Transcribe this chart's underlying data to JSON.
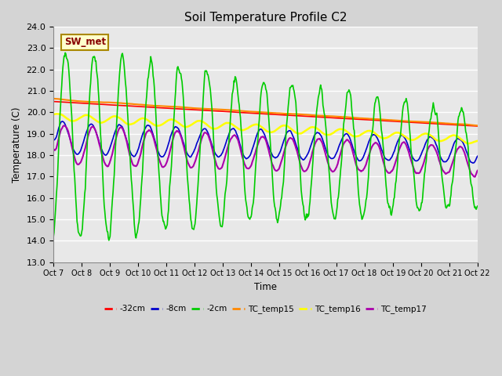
{
  "title": "Soil Temperature Profile C2",
  "xlabel": "Time",
  "ylabel": "Temperature (C)",
  "ylim": [
    13.0,
    24.0
  ],
  "yticks": [
    13.0,
    14.0,
    15.0,
    16.0,
    17.0,
    18.0,
    19.0,
    20.0,
    21.0,
    22.0,
    23.0,
    24.0
  ],
  "xtick_labels": [
    "Oct 7",
    "Oct 8",
    "Oct 9",
    "Oct 10",
    "Oct 11",
    "Oct 12",
    "Oct 13",
    "Oct 14",
    "Oct 15",
    "Oct 16",
    "Oct 17",
    "Oct 18",
    "Oct 19",
    "Oct 20",
    "Oct 21",
    "Oct 22"
  ],
  "annotation_text": "SW_met",
  "annotation_bg": "#ffffcc",
  "annotation_border": "#aa8800",
  "annotation_text_color": "#880000",
  "fig_bg_color": "#d4d4d4",
  "plot_bg_color": "#e8e8e8",
  "series": {
    "neg32cm": {
      "color": "#ff0000",
      "label": "-32cm",
      "linewidth": 1.2
    },
    "neg8cm": {
      "color": "#0000cc",
      "label": "-8cm",
      "linewidth": 1.2
    },
    "neg2cm": {
      "color": "#00cc00",
      "label": "-2cm",
      "linewidth": 1.2
    },
    "TC_temp15": {
      "color": "#ff8800",
      "label": "TC_temp15",
      "linewidth": 1.5
    },
    "TC_temp16": {
      "color": "#ffff00",
      "label": "TC_temp16",
      "linewidth": 1.8
    },
    "TC_temp17": {
      "color": "#aa00aa",
      "label": "TC_temp17",
      "linewidth": 1.5
    }
  }
}
